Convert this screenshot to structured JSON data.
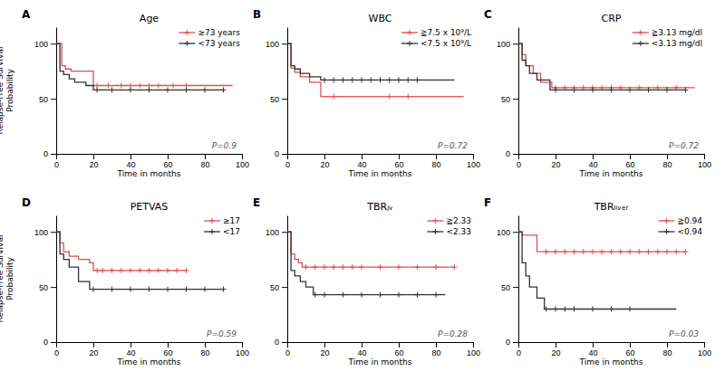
{
  "chart_data": [
    {
      "type": "step",
      "title": "Age",
      "annotations": [
        "A",
        "P=0.9"
      ],
      "x_label": "Time in months",
      "y_label": "Relapse-Free Survival\nProbability",
      "legend": "upper right",
      "xlim": [
        0,
        100
      ],
      "ylim": [
        0,
        115
      ],
      "xticks": [
        0,
        20,
        40,
        60,
        80,
        100
      ],
      "yticks": [
        0,
        50,
        100
      ],
      "series": [
        {
          "name": "≥73 years",
          "color": "#e05050",
          "marker": "plus",
          "x": [
            0,
            1,
            3,
            5,
            8,
            15,
            20,
            70,
            95
          ],
          "values": [
            100,
            100,
            80,
            77,
            75,
            75,
            62,
            62,
            62
          ],
          "censors": {
            "x": [
              22,
              28,
              35,
              40,
              45,
              50,
              55,
              63,
              70
            ],
            "values": [
              62,
              62,
              62,
              62,
              62,
              62,
              62,
              62,
              62
            ]
          }
        },
        {
          "name": "<73 years",
          "color": "#333333",
          "marker": "plus",
          "x": [
            0,
            2,
            4,
            7,
            10,
            16,
            20,
            90
          ],
          "values": [
            100,
            75,
            72,
            68,
            65,
            62,
            58,
            58
          ],
          "censors": {
            "x": [
              22,
              30,
              40,
              50,
              60,
              70,
              80,
              90
            ],
            "values": [
              58,
              58,
              58,
              58,
              58,
              58,
              58,
              58
            ]
          }
        }
      ]
    },
    {
      "type": "step",
      "title": "WBC",
      "annotations": [
        "B",
        "P=0.72"
      ],
      "x_label": "Time in months",
      "legend": "upper right",
      "xlim": [
        0,
        100
      ],
      "ylim": [
        0,
        115
      ],
      "xticks": [
        0,
        20,
        40,
        60,
        80,
        100
      ],
      "yticks": [
        0,
        50,
        100
      ],
      "series": [
        {
          "name": "≧7.5 x 10⁹/L",
          "color": "#e05050",
          "marker": "plus",
          "x": [
            0,
            2,
            4,
            7,
            12,
            18,
            50,
            65,
            95
          ],
          "values": [
            100,
            78,
            74,
            70,
            65,
            52,
            52,
            52,
            52
          ],
          "censors": {
            "x": [
              25,
              55,
              65
            ],
            "values": [
              52,
              52,
              52
            ]
          }
        },
        {
          "name": "<7.5 x 10⁹/L",
          "color": "#333333",
          "marker": "plus",
          "x": [
            0,
            2,
            4,
            7,
            12,
            18,
            70,
            90
          ],
          "values": [
            100,
            80,
            77,
            73,
            70,
            67,
            67,
            67
          ],
          "censors": {
            "x": [
              20,
              25,
              30,
              35,
              40,
              45,
              50,
              55,
              60,
              65,
              70
            ],
            "values": [
              67,
              67,
              67,
              67,
              67,
              67,
              67,
              67,
              67,
              67,
              67
            ]
          }
        }
      ]
    },
    {
      "type": "step",
      "title": "CRP",
      "annotations": [
        "C",
        "P=0.72"
      ],
      "x_label": "Time in months",
      "legend": "upper right",
      "xlim": [
        0,
        100
      ],
      "ylim": [
        0,
        115
      ],
      "xticks": [
        0,
        20,
        40,
        60,
        80,
        100
      ],
      "yticks": [
        0,
        50,
        100
      ],
      "series": [
        {
          "name": "≧3.13 mg/dl",
          "color": "#e05050",
          "marker": "plus",
          "x": [
            0,
            2,
            4,
            8,
            12,
            18,
            65,
            85,
            95
          ],
          "values": [
            100,
            90,
            80,
            73,
            65,
            60,
            60,
            60,
            60
          ],
          "censors": {
            "x": [
              20,
              25,
              30,
              35,
              40,
              45,
              50,
              55,
              65,
              75,
              85
            ],
            "values": [
              60,
              60,
              60,
              60,
              60,
              60,
              60,
              60,
              60,
              60,
              60
            ]
          }
        },
        {
          "name": "<3.13 mg/dl",
          "color": "#333333",
          "marker": "plus",
          "x": [
            0,
            2,
            4,
            6,
            10,
            17,
            90
          ],
          "values": [
            100,
            85,
            80,
            73,
            67,
            58,
            58
          ],
          "censors": {
            "x": [
              20,
              30,
              40,
              50,
              60,
              70,
              80,
              90
            ],
            "values": [
              58,
              58,
              58,
              58,
              58,
              58,
              58,
              58
            ]
          }
        }
      ]
    },
    {
      "type": "step",
      "title": "PETVAS",
      "annotations": [
        "D",
        "P=0.59"
      ],
      "x_label": "Time in months",
      "y_label": "Relapse-Free Survival\nProbability",
      "legend": "upper right",
      "xlim": [
        0,
        100
      ],
      "ylim": [
        0,
        115
      ],
      "xticks": [
        0,
        20,
        40,
        60,
        80,
        100
      ],
      "yticks": [
        0,
        50,
        100
      ],
      "series": [
        {
          "name": "≥17",
          "color": "#e05050",
          "marker": "plus",
          "x": [
            0,
            2,
            4,
            7,
            12,
            18,
            20,
            65,
            70
          ],
          "values": [
            100,
            90,
            82,
            78,
            75,
            72,
            65,
            65,
            65
          ],
          "censors": {
            "x": [
              22,
              25,
              30,
              35,
              40,
              45,
              50,
              55,
              60,
              65,
              70
            ],
            "values": [
              65,
              65,
              65,
              65,
              65,
              65,
              65,
              65,
              65,
              65,
              65
            ]
          }
        },
        {
          "name": "<17",
          "color": "#333333",
          "marker": "plus",
          "x": [
            0,
            2,
            4,
            7,
            12,
            18,
            90
          ],
          "values": [
            100,
            80,
            75,
            68,
            55,
            48,
            48
          ],
          "censors": {
            "x": [
              20,
              30,
              40,
              50,
              60,
              70,
              80,
              90
            ],
            "values": [
              48,
              48,
              48,
              48,
              48,
              48,
              48,
              48
            ]
          }
        }
      ]
    },
    {
      "type": "step",
      "title": "TBRⱼᵥ",
      "annotations": [
        "E",
        "P=0.28"
      ],
      "x_label": "Time in months",
      "legend": "upper right",
      "xlim": [
        0,
        100
      ],
      "ylim": [
        0,
        115
      ],
      "xticks": [
        0,
        20,
        40,
        60,
        80,
        100
      ],
      "yticks": [
        0,
        50,
        100
      ],
      "series": [
        {
          "name": "≧2.33",
          "color": "#e05050",
          "marker": "plus",
          "x": [
            0,
            2,
            4,
            6,
            8,
            90
          ],
          "values": [
            100,
            80,
            75,
            72,
            68,
            68
          ],
          "censors": {
            "x": [
              10,
              15,
              20,
              25,
              30,
              35,
              40,
              50,
              60,
              70,
              80,
              90
            ],
            "values": [
              68,
              68,
              68,
              68,
              68,
              68,
              68,
              68,
              68,
              68,
              68,
              68
            ]
          }
        },
        {
          "name": "<2.33",
          "color": "#333333",
          "marker": "plus",
          "x": [
            0,
            2,
            4,
            7,
            10,
            14,
            85
          ],
          "values": [
            100,
            65,
            60,
            55,
            50,
            43,
            43
          ],
          "censors": {
            "x": [
              15,
              20,
              30,
              40,
              50,
              60,
              70,
              80
            ],
            "values": [
              43,
              43,
              43,
              43,
              43,
              43,
              43,
              43
            ]
          }
        }
      ]
    },
    {
      "type": "step",
      "title": "TBRₗᵢᵥₑᵣ",
      "annotations": [
        "F",
        "P=0.03"
      ],
      "x_label": "Time in months",
      "legend": "upper right",
      "xlim": [
        0,
        100
      ],
      "ylim": [
        0,
        115
      ],
      "xticks": [
        0,
        20,
        40,
        60,
        80,
        100
      ],
      "yticks": [
        0,
        50,
        100
      ],
      "series": [
        {
          "name": "≧0.94",
          "color": "#e05050",
          "marker": "plus",
          "x": [
            0,
            2,
            10,
            90
          ],
          "values": [
            100,
            97,
            82,
            82
          ],
          "censors": {
            "x": [
              15,
              20,
              25,
              30,
              35,
              40,
              45,
              50,
              55,
              60,
              65,
              70,
              75,
              80,
              85,
              90
            ],
            "values": [
              82,
              82,
              82,
              82,
              82,
              82,
              82,
              82,
              82,
              82,
              82,
              82,
              82,
              82,
              82,
              82
            ]
          }
        },
        {
          "name": "<0.94",
          "color": "#333333",
          "marker": "plus",
          "x": [
            0,
            2,
            4,
            6,
            10,
            14,
            85
          ],
          "values": [
            100,
            72,
            60,
            50,
            40,
            30,
            30
          ],
          "censors": {
            "x": [
              15,
              20,
              25,
              30,
              40,
              50,
              60
            ],
            "values": [
              30,
              30,
              30,
              30,
              30,
              30,
              30
            ]
          }
        }
      ]
    }
  ]
}
